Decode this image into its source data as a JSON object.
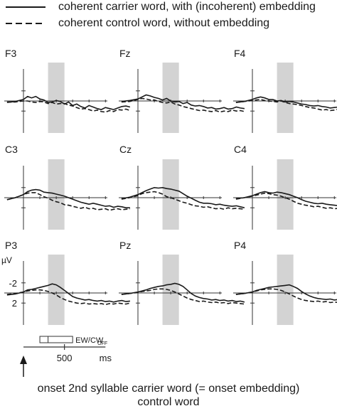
{
  "legend": {
    "solid_label": "coherent carrier word, with (incoherent) embedding",
    "dashed_label": "coherent control word, without embedding"
  },
  "axes": {
    "y_unit": "µV",
    "y_ticks": [
      "-2",
      "0",
      "2"
    ],
    "x_tick": "500",
    "x_unit": "ms",
    "window_label": "EW/CW",
    "window_label_sub": "OFF",
    "ylim": [
      -4,
      4
    ],
    "xlim": [
      -200,
      1300
    ],
    "shaded_window_ms": [
      300,
      500
    ]
  },
  "caption": {
    "line1": "onset 2nd syllable carrier word (= onset embedding)",
    "line2": "control word"
  },
  "chart_data": {
    "type": "line",
    "x_unit": "ms",
    "y_unit": "µV",
    "negative_up": true,
    "grid": false,
    "x": [
      -200,
      -100,
      0,
      50,
      100,
      150,
      200,
      250,
      300,
      350,
      400,
      450,
      500,
      550,
      600,
      650,
      700,
      750,
      800,
      850,
      900,
      950,
      1000,
      1050,
      1100,
      1150,
      1200,
      1250,
      1300
    ],
    "panels": [
      {
        "electrode": "F3",
        "solid": [
          0.3,
          0.1,
          -0.3,
          -0.9,
          -0.6,
          -0.9,
          -0.4,
          -0.2,
          0.3,
          0.2,
          -0.1,
          0.1,
          0.6,
          0.2,
          0.9,
          0.6,
          1.1,
          1.4,
          0.9,
          1.2,
          1.5,
          1.7,
          1.3,
          1.5,
          1.7,
          1.4,
          1.1,
          1.0,
          1.2
        ],
        "dashed": [
          0.2,
          0.2,
          0.0,
          0.0,
          0.2,
          0.3,
          0.1,
          0.2,
          0.5,
          0.3,
          0.6,
          0.5,
          0.5,
          0.8,
          1.0,
          1.3,
          1.6,
          1.5,
          1.7,
          2.0,
          1.8,
          2.1,
          2.2,
          1.9,
          2.1,
          1.7,
          1.8,
          1.6,
          1.9
        ]
      },
      {
        "electrode": "Fz",
        "solid": [
          0.1,
          -0.1,
          -0.4,
          -0.8,
          -1.2,
          -1.0,
          -0.7,
          -0.5,
          -0.2,
          -0.5,
          0.0,
          0.2,
          0.1,
          0.5,
          0.3,
          0.8,
          1.0,
          0.9,
          1.1,
          1.4,
          1.3,
          1.6,
          1.5,
          1.3,
          1.6,
          1.5,
          1.2,
          1.4,
          1.5
        ],
        "dashed": [
          0.2,
          0.1,
          -0.3,
          -0.5,
          -0.4,
          -0.2,
          -0.2,
          0.1,
          0.3,
          0.4,
          0.2,
          0.6,
          0.8,
          1.1,
          1.3,
          1.5,
          1.7,
          1.9,
          1.8,
          2.0,
          2.1,
          1.9,
          2.2,
          2.0,
          2.1,
          1.8,
          2.0,
          1.9,
          2.1
        ]
      },
      {
        "electrode": "F4",
        "solid": [
          0.3,
          0.1,
          -0.3,
          -0.6,
          -0.8,
          -0.6,
          -0.3,
          -0.3,
          0.0,
          -0.1,
          0.2,
          0.1,
          0.2,
          0.4,
          0.6,
          0.7,
          0.9,
          1.0,
          0.9,
          1.1,
          1.2,
          1.4,
          1.3,
          1.2,
          1.3,
          1.1,
          1.0,
          1.1,
          1.2
        ],
        "dashed": [
          0.3,
          0.1,
          -0.1,
          -0.2,
          -0.3,
          -0.1,
          0.0,
          0.1,
          0.2,
          0.0,
          0.3,
          0.5,
          0.6,
          0.7,
          0.9,
          1.1,
          1.3,
          1.4,
          1.6,
          1.8,
          1.7,
          1.9,
          1.8,
          1.6,
          1.5,
          1.4,
          1.5,
          1.6,
          1.7
        ]
      },
      {
        "electrode": "C3",
        "solid": [
          0.4,
          0.0,
          -0.6,
          -1.2,
          -1.5,
          -1.6,
          -1.5,
          -1.1,
          -1.0,
          -0.9,
          -0.7,
          -0.5,
          -0.3,
          0.0,
          0.3,
          0.6,
          0.9,
          1.1,
          1.3,
          1.1,
          1.3,
          1.5,
          1.7,
          1.6,
          1.9,
          1.7,
          1.8,
          2.0,
          2.0
        ],
        "dashed": [
          0.4,
          0.0,
          -0.6,
          -0.9,
          -1.0,
          -1.0,
          -0.6,
          -0.2,
          0.1,
          0.5,
          0.8,
          1.0,
          1.4,
          1.5,
          1.7,
          1.9,
          2.1,
          1.9,
          2.2,
          2.1,
          2.4,
          2.3,
          2.2,
          2.5,
          2.3,
          2.2,
          2.4,
          2.3,
          2.2
        ]
      },
      {
        "electrode": "Cz",
        "solid": [
          0.2,
          -0.1,
          -0.6,
          -1.0,
          -1.4,
          -1.7,
          -2.0,
          -1.9,
          -2.0,
          -1.8,
          -1.7,
          -1.5,
          -1.3,
          -0.8,
          -0.3,
          0.1,
          0.5,
          0.9,
          1.1,
          1.1,
          1.2,
          1.4,
          1.3,
          1.5,
          1.6,
          1.7,
          1.6,
          1.8,
          2.0
        ],
        "dashed": [
          0.3,
          0.0,
          -0.4,
          -0.8,
          -1.0,
          -1.1,
          -1.2,
          -1.0,
          -0.7,
          -0.2,
          0.0,
          0.3,
          0.6,
          0.9,
          1.1,
          1.4,
          1.6,
          1.7,
          1.9,
          1.8,
          2.0,
          2.2,
          2.1,
          2.3,
          2.0,
          2.2,
          2.1,
          2.2,
          2.3
        ]
      },
      {
        "electrode": "C4",
        "solid": [
          0.2,
          0.0,
          -0.4,
          -0.7,
          -1.0,
          -1.2,
          -1.0,
          -0.9,
          -1.1,
          -1.0,
          -0.8,
          -0.6,
          -0.3,
          0.0,
          0.4,
          0.7,
          0.9,
          1.1,
          1.2,
          1.1,
          1.3,
          1.4,
          1.5,
          1.6,
          1.5,
          1.7,
          1.8,
          1.7,
          1.8
        ],
        "dashed": [
          0.3,
          0.0,
          -0.3,
          -0.5,
          -0.7,
          -0.9,
          -0.8,
          -0.6,
          -0.5,
          -0.3,
          0.0,
          0.3,
          0.7,
          1.1,
          1.3,
          1.5,
          1.6,
          1.8,
          1.7,
          1.9,
          2.1,
          2.0,
          2.2,
          2.1,
          2.3,
          2.0,
          2.2,
          2.1,
          2.2
        ]
      },
      {
        "electrode": "P3",
        "solid": [
          0.4,
          0.2,
          -0.2,
          -0.6,
          -0.7,
          -0.9,
          -1.1,
          -1.3,
          -1.5,
          -1.8,
          -1.6,
          -1.1,
          -0.5,
          0.1,
          0.7,
          1.0,
          1.2,
          1.4,
          1.3,
          1.5,
          1.6,
          1.5,
          1.7,
          1.6,
          1.8,
          1.6,
          1.5,
          1.7,
          1.6
        ],
        "dashed": [
          0.3,
          0.1,
          -0.2,
          -0.4,
          -0.5,
          -0.6,
          -0.6,
          -0.5,
          -0.3,
          0.0,
          0.4,
          0.9,
          1.3,
          1.6,
          1.8,
          2.0,
          2.1,
          2.0,
          2.2,
          2.1,
          2.2,
          2.1,
          2.3,
          2.1,
          2.2,
          2.0,
          2.1,
          2.2,
          2.0
        ]
      },
      {
        "electrode": "Pz",
        "solid": [
          0.3,
          0.1,
          -0.2,
          -0.4,
          -0.6,
          -0.9,
          -1.1,
          -1.3,
          -1.4,
          -1.6,
          -1.7,
          -1.9,
          -1.7,
          -1.3,
          -0.6,
          0.1,
          0.6,
          0.9,
          1.1,
          1.2,
          1.4,
          1.3,
          1.5,
          1.4,
          1.6,
          1.5,
          1.7,
          1.6,
          1.8
        ],
        "dashed": [
          0.3,
          0.1,
          -0.1,
          -0.3,
          -0.4,
          -0.5,
          -0.7,
          -0.8,
          -0.8,
          -0.7,
          -0.5,
          -0.2,
          0.2,
          0.6,
          1.0,
          1.3,
          1.5,
          1.7,
          1.6,
          1.8,
          1.9,
          1.8,
          2.0,
          1.9,
          2.1,
          1.9,
          2.0,
          2.1,
          2.2
        ]
      },
      {
        "electrode": "P4",
        "solid": [
          0.3,
          0.1,
          -0.2,
          -0.5,
          -0.7,
          -0.9,
          -1.1,
          -1.2,
          -1.3,
          -1.4,
          -1.5,
          -1.6,
          -1.3,
          -0.9,
          -0.3,
          0.2,
          0.6,
          0.9,
          1.1,
          1.2,
          1.3,
          1.2,
          1.4,
          1.3,
          1.5,
          1.4,
          1.6,
          1.5,
          1.6
        ],
        "dashed": [
          0.3,
          0.1,
          -0.2,
          -0.4,
          -0.6,
          -0.7,
          -0.8,
          -0.8,
          -0.7,
          -0.5,
          -0.2,
          0.2,
          0.6,
          1.0,
          1.3,
          1.5,
          1.6,
          1.7,
          1.6,
          1.8,
          1.7,
          1.9,
          1.8,
          1.9,
          2.0,
          1.8,
          1.9,
          2.0,
          1.9
        ]
      }
    ]
  }
}
